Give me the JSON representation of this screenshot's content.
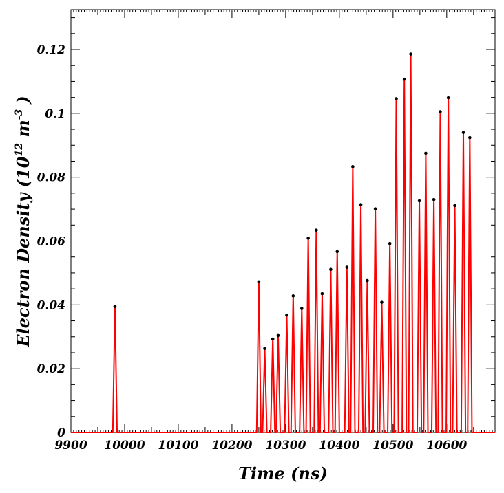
{
  "chart_data": {
    "type": "line",
    "xlabel": "Time (ns)",
    "ylabel": {
      "base": "Electron Density (10",
      "exp1": "12",
      "mid": " m",
      "exp2": "-3",
      "tail": ")"
    },
    "xlim": [
      9900,
      10690
    ],
    "ylim": [
      0,
      0.1325
    ],
    "x_ticks": [
      9900,
      10000,
      10100,
      10200,
      10300,
      10400,
      10500,
      10600
    ],
    "x_tick_labels": [
      "9900",
      "10000",
      "10100",
      "10200",
      "10300",
      "10400",
      "10500",
      "10600"
    ],
    "y_ticks": [
      0,
      0.02,
      0.04,
      0.06,
      0.08,
      0.1,
      0.12
    ],
    "y_tick_labels": [
      "0",
      "0.02",
      "0.04",
      "0.06",
      "0.08",
      "0.1",
      "0.12"
    ],
    "grid": false,
    "line_color": "#ff0000",
    "marker_color": "#000000",
    "pulse_half_width": 4,
    "series": [
      {
        "peaks": [
          {
            "x": 9982,
            "y": 0.0395
          },
          {
            "x": 10250,
            "y": 0.0472
          },
          {
            "x": 10261,
            "y": 0.0263
          },
          {
            "x": 10276,
            "y": 0.0293
          },
          {
            "x": 10286,
            "y": 0.0304
          },
          {
            "x": 10302,
            "y": 0.0368
          },
          {
            "x": 10314,
            "y": 0.0428
          },
          {
            "x": 10330,
            "y": 0.0389
          },
          {
            "x": 10342,
            "y": 0.0609
          },
          {
            "x": 10357,
            "y": 0.0634
          },
          {
            "x": 10368,
            "y": 0.0435
          },
          {
            "x": 10384,
            "y": 0.0511
          },
          {
            "x": 10396,
            "y": 0.0567
          },
          {
            "x": 10414,
            "y": 0.0518
          },
          {
            "x": 10425,
            "y": 0.0833
          },
          {
            "x": 10440,
            "y": 0.0714
          },
          {
            "x": 10452,
            "y": 0.0476
          },
          {
            "x": 10467,
            "y": 0.0701
          },
          {
            "x": 10479,
            "y": 0.0408
          },
          {
            "x": 10494,
            "y": 0.0592
          },
          {
            "x": 10506,
            "y": 0.1046
          },
          {
            "x": 10521,
            "y": 0.1107
          },
          {
            "x": 10533,
            "y": 0.1186
          },
          {
            "x": 10549,
            "y": 0.0726
          },
          {
            "x": 10561,
            "y": 0.0875
          },
          {
            "x": 10576,
            "y": 0.073
          },
          {
            "x": 10588,
            "y": 0.1005
          },
          {
            "x": 10603,
            "y": 0.1049
          },
          {
            "x": 10615,
            "y": 0.0711
          },
          {
            "x": 10631,
            "y": 0.094
          },
          {
            "x": 10643,
            "y": 0.0924
          }
        ]
      }
    ]
  }
}
